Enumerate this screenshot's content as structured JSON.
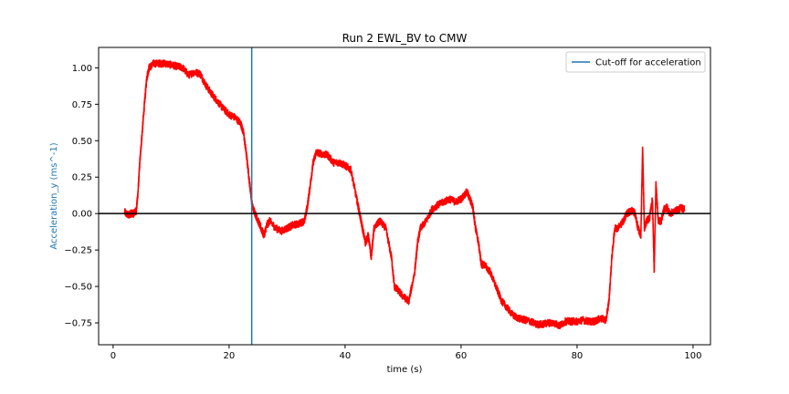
{
  "chart_data": {
    "type": "line",
    "title": "Run 2 EWL_BV to CMW",
    "xlabel": "time (s)",
    "ylabel": "Acceleration_y (ms^-1)",
    "xlim": [
      -2.5,
      103
    ],
    "ylim": [
      -0.9,
      1.14
    ],
    "xticks": [
      0,
      20,
      40,
      60,
      80,
      100
    ],
    "xtick_labels": [
      "0",
      "20",
      "40",
      "60",
      "80",
      "100"
    ],
    "yticks": [
      -0.75,
      -0.5,
      -0.25,
      0.0,
      0.25,
      0.5,
      0.75,
      1.0
    ],
    "ytick_labels": [
      "−0.75",
      "−0.50",
      "−0.25",
      "0.00",
      "0.25",
      "0.50",
      "0.75",
      "1.00"
    ],
    "grid": false,
    "legend_position": "top-right",
    "colors": {
      "series": "#ff0000",
      "cutoff": "#1f77b4",
      "zero_line": "#000000",
      "ylabel": "#1f77b4"
    },
    "series": [
      {
        "color": "#ff0000",
        "noise": 0.025,
        "x": [
          2.0,
          2.5,
          3.0,
          3.5,
          4.0,
          4.3,
          4.6,
          5.0,
          5.4,
          5.8,
          6.2,
          7.0,
          8.0,
          9.0,
          10.0,
          11.0,
          12.0,
          13.0,
          14.0,
          15.0,
          16.0,
          17.0,
          18.0,
          19.0,
          20.0,
          21.0,
          22.0,
          22.5,
          23.0,
          23.5,
          24.0,
          24.5,
          25.0,
          25.5,
          26.0,
          26.5,
          27.0,
          28.0,
          29.0,
          30.0,
          31.0,
          32.0,
          33.0,
          33.5,
          34.0,
          34.5,
          35.0,
          36.0,
          37.0,
          38.0,
          39.0,
          40.0,
          41.0,
          42.0,
          42.5,
          43.0,
          43.5,
          44.0,
          44.5,
          45.0,
          46.0,
          47.0,
          48.0,
          48.5,
          49.0,
          50.0,
          51.0,
          52.0,
          52.5,
          53.0,
          54.0,
          55.0,
          56.0,
          57.0,
          58.0,
          59.0,
          60.0,
          61.0,
          61.5,
          62.0,
          62.5,
          63.0,
          63.5,
          64.0,
          65.0,
          66.0,
          67.0,
          68.0,
          69.0,
          70.0,
          71.0,
          72.0,
          73.0,
          74.0,
          75.0,
          76.0,
          77.0,
          78.0,
          79.0,
          80.0,
          81.0,
          82.0,
          83.0,
          84.0,
          85.0,
          85.5,
          86.0,
          86.5,
          87.0,
          88.0,
          88.5,
          89.0,
          89.5,
          90.0,
          90.5,
          91.0,
          91.3,
          91.6,
          92.0,
          92.5,
          93.0,
          93.3,
          93.6,
          94.0,
          94.5,
          95.0,
          95.5,
          96.0,
          97.0,
          98.0,
          98.5
        ],
        "y": [
          0.01,
          -0.01,
          0.0,
          0.0,
          0.02,
          0.15,
          0.35,
          0.55,
          0.75,
          0.93,
          1.0,
          1.03,
          1.03,
          1.03,
          1.02,
          1.01,
          1.0,
          0.95,
          0.97,
          0.96,
          0.88,
          0.82,
          0.77,
          0.72,
          0.68,
          0.66,
          0.62,
          0.55,
          0.4,
          0.22,
          0.05,
          0.0,
          -0.05,
          -0.1,
          -0.15,
          -0.08,
          -0.05,
          -0.1,
          -0.12,
          -0.1,
          -0.08,
          -0.07,
          -0.05,
          0.05,
          0.2,
          0.35,
          0.42,
          0.41,
          0.4,
          0.35,
          0.35,
          0.33,
          0.3,
          0.1,
          0.0,
          -0.1,
          -0.2,
          -0.15,
          -0.3,
          -0.1,
          -0.05,
          -0.1,
          -0.3,
          -0.5,
          -0.52,
          -0.57,
          -0.6,
          -0.4,
          -0.2,
          -0.1,
          -0.05,
          0.03,
          0.06,
          0.08,
          0.1,
          0.08,
          0.1,
          0.15,
          0.1,
          0.05,
          -0.1,
          -0.2,
          -0.35,
          -0.35,
          -0.4,
          -0.5,
          -0.6,
          -0.65,
          -0.7,
          -0.72,
          -0.73,
          -0.74,
          -0.76,
          -0.76,
          -0.75,
          -0.75,
          -0.77,
          -0.74,
          -0.74,
          -0.74,
          -0.73,
          -0.74,
          -0.74,
          -0.72,
          -0.73,
          -0.6,
          -0.3,
          -0.1,
          -0.1,
          -0.05,
          0.0,
          0.01,
          0.02,
          0.0,
          -0.1,
          -0.15,
          0.45,
          -0.1,
          -0.05,
          -0.03,
          0.1,
          -0.4,
          0.2,
          -0.05,
          -0.05,
          0.03,
          0.04,
          0.0,
          0.02,
          0.04,
          0.03
        ]
      }
    ],
    "cutoff": {
      "x": 23.9,
      "color": "#1f77b4",
      "label": "Cut-off for acceleration"
    },
    "zero_line": {
      "y": 0,
      "color": "#000000"
    }
  }
}
